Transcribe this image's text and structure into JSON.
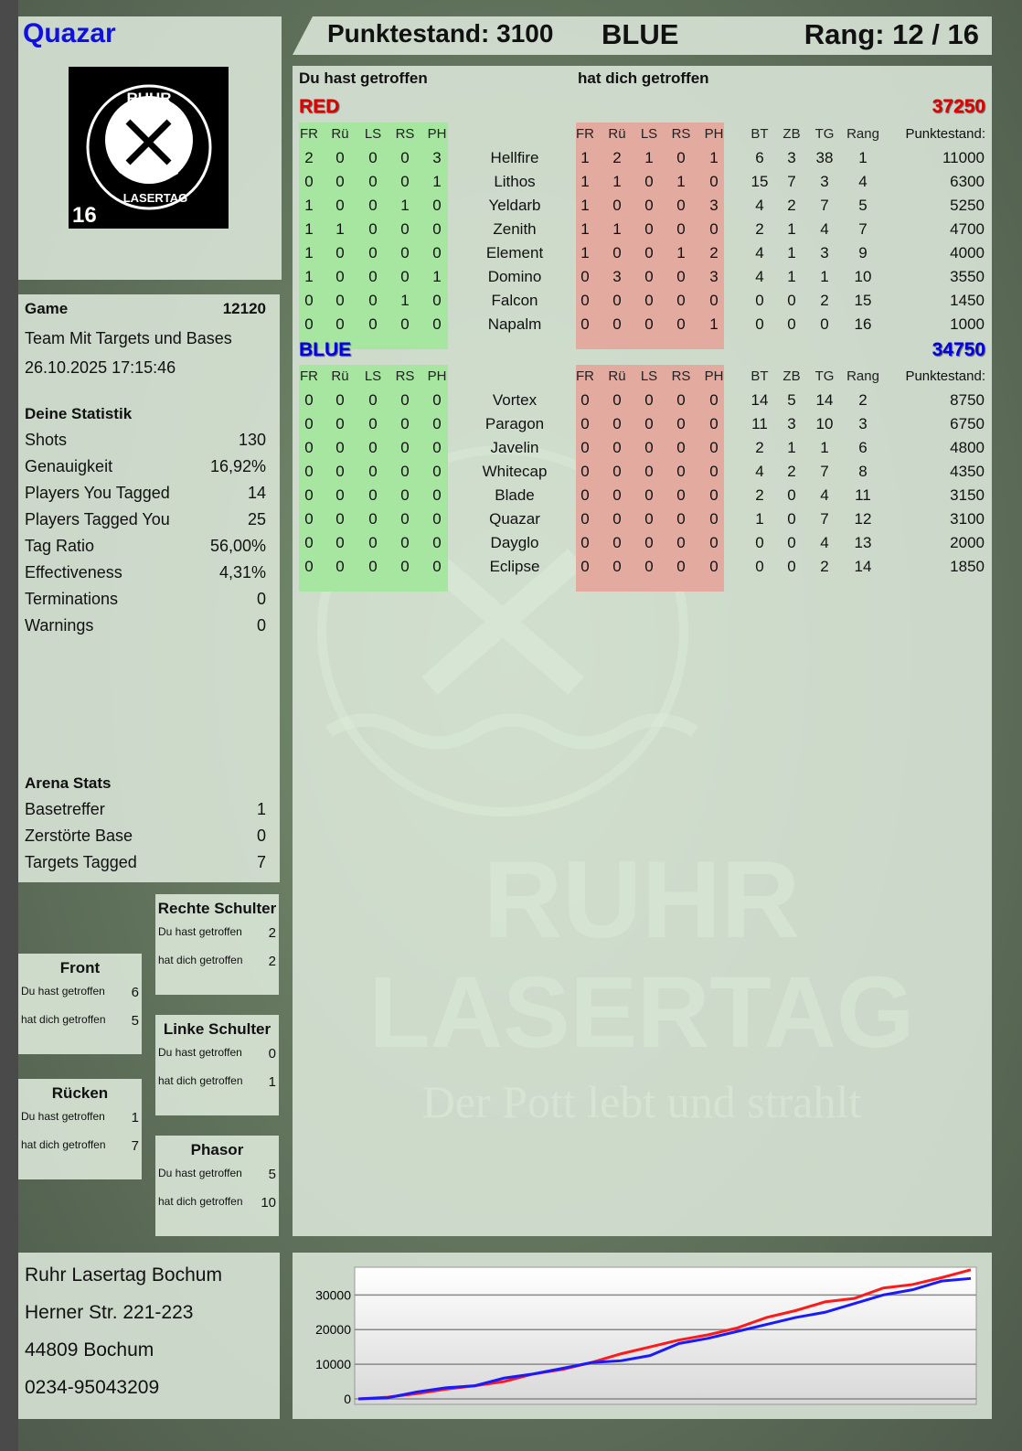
{
  "player": {
    "name": "Quazar",
    "logo": {
      "top_text": "RUHR",
      "bottom_text": "LASERTAG",
      "number": "16"
    }
  },
  "header": {
    "score_label": "Punktestand: 3100",
    "team": "BLUE",
    "rank_label": "Rang: 12 / 16"
  },
  "table": {
    "you_hit_label": "Du hast getroffen",
    "hit_you_label": "hat dich getroffen",
    "hit_columns": [
      "FR",
      "Rü",
      "LS",
      "RS",
      "PH"
    ],
    "stat_columns": [
      "BT",
      "ZB",
      "TG",
      "Rang",
      "Punktestand:"
    ],
    "teams": [
      {
        "name": "RED",
        "total": "37250",
        "color": "#e00000",
        "players": [
          {
            "name": "Hellfire",
            "you_hit": [
              2,
              0,
              0,
              0,
              3
            ],
            "hit_you": [
              1,
              2,
              1,
              0,
              1
            ],
            "stats": [
              6,
              3,
              38,
              1,
              11000
            ]
          },
          {
            "name": "Lithos",
            "you_hit": [
              0,
              0,
              0,
              0,
              1
            ],
            "hit_you": [
              1,
              1,
              0,
              1,
              0
            ],
            "stats": [
              15,
              7,
              3,
              4,
              6300
            ]
          },
          {
            "name": "Yeldarb",
            "you_hit": [
              1,
              0,
              0,
              1,
              0
            ],
            "hit_you": [
              1,
              0,
              0,
              0,
              3
            ],
            "stats": [
              4,
              2,
              7,
              5,
              5250
            ]
          },
          {
            "name": "Zenith",
            "you_hit": [
              1,
              1,
              0,
              0,
              0
            ],
            "hit_you": [
              1,
              1,
              0,
              0,
              0
            ],
            "stats": [
              2,
              1,
              4,
              7,
              4700
            ]
          },
          {
            "name": "Element",
            "you_hit": [
              1,
              0,
              0,
              0,
              0
            ],
            "hit_you": [
              1,
              0,
              0,
              1,
              2
            ],
            "stats": [
              4,
              1,
              3,
              9,
              4000
            ]
          },
          {
            "name": "Domino",
            "you_hit": [
              1,
              0,
              0,
              0,
              1
            ],
            "hit_you": [
              0,
              3,
              0,
              0,
              3
            ],
            "stats": [
              4,
              1,
              1,
              10,
              3550
            ]
          },
          {
            "name": "Falcon",
            "you_hit": [
              0,
              0,
              0,
              1,
              0
            ],
            "hit_you": [
              0,
              0,
              0,
              0,
              0
            ],
            "stats": [
              0,
              0,
              2,
              15,
              1450
            ]
          },
          {
            "name": "Napalm",
            "you_hit": [
              0,
              0,
              0,
              0,
              0
            ],
            "hit_you": [
              0,
              0,
              0,
              0,
              1
            ],
            "stats": [
              0,
              0,
              0,
              16,
              1000
            ]
          }
        ]
      },
      {
        "name": "BLUE",
        "total": "34750",
        "color": "#0000e0",
        "players": [
          {
            "name": "Vortex",
            "you_hit": [
              0,
              0,
              0,
              0,
              0
            ],
            "hit_you": [
              0,
              0,
              0,
              0,
              0
            ],
            "stats": [
              14,
              5,
              14,
              2,
              8750
            ]
          },
          {
            "name": "Paragon",
            "you_hit": [
              0,
              0,
              0,
              0,
              0
            ],
            "hit_you": [
              0,
              0,
              0,
              0,
              0
            ],
            "stats": [
              11,
              3,
              10,
              3,
              6750
            ]
          },
          {
            "name": "Javelin",
            "you_hit": [
              0,
              0,
              0,
              0,
              0
            ],
            "hit_you": [
              0,
              0,
              0,
              0,
              0
            ],
            "stats": [
              2,
              1,
              1,
              6,
              4800
            ]
          },
          {
            "name": "Whitecap",
            "you_hit": [
              0,
              0,
              0,
              0,
              0
            ],
            "hit_you": [
              0,
              0,
              0,
              0,
              0
            ],
            "stats": [
              4,
              2,
              7,
              8,
              4350
            ]
          },
          {
            "name": "Blade",
            "you_hit": [
              0,
              0,
              0,
              0,
              0
            ],
            "hit_you": [
              0,
              0,
              0,
              0,
              0
            ],
            "stats": [
              2,
              0,
              4,
              11,
              3150
            ]
          },
          {
            "name": "Quazar",
            "you_hit": [
              0,
              0,
              0,
              0,
              0
            ],
            "hit_you": [
              0,
              0,
              0,
              0,
              0
            ],
            "stats": [
              1,
              0,
              7,
              12,
              3100
            ]
          },
          {
            "name": "Dayglo",
            "you_hit": [
              0,
              0,
              0,
              0,
              0
            ],
            "hit_you": [
              0,
              0,
              0,
              0,
              0
            ],
            "stats": [
              0,
              0,
              4,
              13,
              2000
            ]
          },
          {
            "name": "Eclipse",
            "you_hit": [
              0,
              0,
              0,
              0,
              0
            ],
            "hit_you": [
              0,
              0,
              0,
              0,
              0
            ],
            "stats": [
              0,
              0,
              2,
              14,
              1850
            ]
          }
        ]
      }
    ]
  },
  "game": {
    "label": "Game",
    "number": "12120",
    "mode": "Team Mit Targets und Bases",
    "datetime": "26.10.2025 17:15:46"
  },
  "stats": {
    "title": "Deine Statistik",
    "items": [
      {
        "label": "Shots",
        "value": "130"
      },
      {
        "label": "Genauigkeit",
        "value": "16,92%"
      },
      {
        "label": "Players You Tagged",
        "value": "14"
      },
      {
        "label": "Players Tagged You",
        "value": "25"
      },
      {
        "label": "Tag Ratio",
        "value": "56,00%"
      },
      {
        "label": "Effectiveness",
        "value": "4,31%"
      },
      {
        "label": "Terminations",
        "value": "0"
      },
      {
        "label": "Warnings",
        "value": "0"
      }
    ]
  },
  "arena": {
    "title": "Arena Stats",
    "items": [
      {
        "label": "Basetreffer",
        "value": "1"
      },
      {
        "label": "Zerstörte Base",
        "value": "0"
      },
      {
        "label": "Targets Tagged",
        "value": "7"
      }
    ]
  },
  "zones": [
    {
      "title": "Rechte Schulter",
      "you_hit_label": "Du hast getroffen",
      "you_hit": "2",
      "hit_you_label": "hat dich getroffen",
      "hit_you": "2"
    },
    {
      "title": "Front",
      "you_hit_label": "Du hast getroffen",
      "you_hit": "6",
      "hit_you_label": "hat dich getroffen",
      "hit_you": "5"
    },
    {
      "title": "Linke Schulter",
      "you_hit_label": "Du hast getroffen",
      "you_hit": "0",
      "hit_you_label": "hat dich getroffen",
      "hit_you": "1"
    },
    {
      "title": "Rücken",
      "you_hit_label": "Du hast getroffen",
      "you_hit": "1",
      "hit_you_label": "hat dich getroffen",
      "hit_you": "7"
    },
    {
      "title": "Phasor",
      "you_hit_label": "Du hast getroffen",
      "you_hit": "5",
      "hit_you_label": "hat dich getroffen",
      "hit_you": "10"
    }
  ],
  "address": {
    "lines": [
      "Ruhr Lasertag Bochum",
      "Herner Str. 221-223",
      "44809 Bochum",
      "0234-95043209"
    ]
  },
  "watermark": {
    "line1": "RUHR",
    "line2": "LASERTAG",
    "slogan": "Der Pott lebt und strahlt"
  },
  "colors": {
    "red": "#ff1a1a",
    "blue": "#1a1aff",
    "you_hit_bg": "#a6e6a0",
    "hit_you_bg": "#e3aaa0"
  },
  "chart_data": {
    "type": "line",
    "ylim": [
      0,
      38000
    ],
    "yticks": [
      0,
      10000,
      20000,
      30000
    ],
    "grid": true,
    "series": [
      {
        "color": "#ff1a1a",
        "values": [
          0,
          500,
          1500,
          2800,
          3800,
          5000,
          7200,
          8500,
          10500,
          13000,
          15000,
          17000,
          18500,
          20500,
          23500,
          25500,
          28000,
          29000,
          32000,
          33000,
          35000,
          37250
        ]
      },
      {
        "color": "#1a1aff",
        "values": [
          0,
          300,
          2000,
          3200,
          3800,
          6000,
          7200,
          8800,
          10500,
          11000,
          12500,
          16000,
          17500,
          19500,
          21500,
          23500,
          25000,
          27500,
          30000,
          31500,
          34000,
          34750
        ]
      }
    ]
  }
}
